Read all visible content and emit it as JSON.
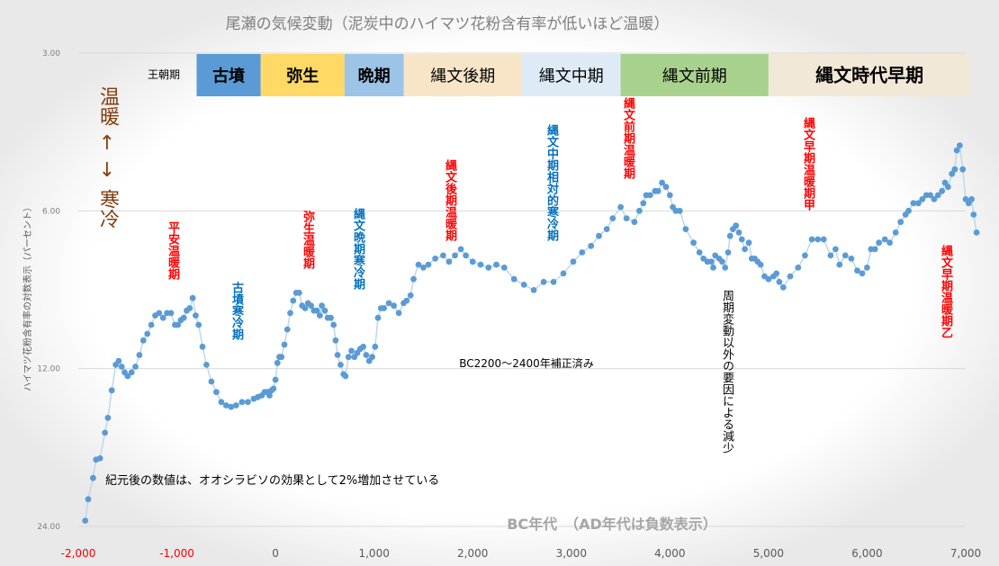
{
  "chart_data": {
    "type": "scatter",
    "title": "尾瀬の気候変動（泥炭中のハイマツ花粉含有率が低いほど温暖）",
    "xlabel": "BC年代　（AD年代は負数表示）",
    "ylabel": "ハイマツ花粉含有率の対数表示（パーセント）",
    "xlim": [
      -2000,
      7000
    ],
    "y_scale": "log",
    "y_reversed": true,
    "ylim": [
      3,
      24
    ],
    "x_ticks": [
      {
        "value": -2000,
        "label": "-2,000"
      },
      {
        "value": -1000,
        "label": "-1,000"
      },
      {
        "value": 0,
        "label": "0"
      },
      {
        "value": 1000,
        "label": "1,000"
      },
      {
        "value": 2000,
        "label": "2,000"
      },
      {
        "value": 3000,
        "label": "3,000"
      },
      {
        "value": 4000,
        "label": "4,000"
      },
      {
        "value": 5000,
        "label": "5,000"
      },
      {
        "value": 6000,
        "label": "6,000"
      },
      {
        "value": 7000,
        "label": "7,000"
      }
    ],
    "y_ticks": [
      {
        "value": 3,
        "label": "3.00"
      },
      {
        "value": 6,
        "label": "6.00"
      },
      {
        "value": 12,
        "label": "12.00"
      },
      {
        "value": 24,
        "label": "24.00"
      }
    ],
    "grid": true,
    "colors": {
      "point": "#5b9bd5",
      "line": "#bdd7ee",
      "grid": "#d9d9d9"
    },
    "points": [
      [
        -1930,
        23.4
      ],
      [
        -1900,
        21.3
      ],
      [
        -1850,
        19.4
      ],
      [
        -1820,
        17.9
      ],
      [
        -1780,
        17.8
      ],
      [
        -1730,
        15.9
      ],
      [
        -1700,
        14.9
      ],
      [
        -1660,
        13.2
      ],
      [
        -1620,
        11.8
      ],
      [
        -1590,
        11.6
      ],
      [
        -1560,
        11.9
      ],
      [
        -1530,
        12.2
      ],
      [
        -1500,
        12.4
      ],
      [
        -1460,
        12.2
      ],
      [
        -1420,
        11.9
      ],
      [
        -1380,
        11.3
      ],
      [
        -1340,
        10.6
      ],
      [
        -1300,
        10.3
      ],
      [
        -1260,
        9.9
      ],
      [
        -1220,
        9.5
      ],
      [
        -1180,
        9.4
      ],
      [
        -1140,
        9.6
      ],
      [
        -1100,
        9.4
      ],
      [
        -1060,
        9.4
      ],
      [
        -1020,
        9.9
      ],
      [
        -990,
        9.9
      ],
      [
        -960,
        9.7
      ],
      [
        -930,
        9.6
      ],
      [
        -900,
        9.3
      ],
      [
        -870,
        9.2
      ],
      [
        -840,
        8.8
      ],
      [
        -810,
        9.5
      ],
      [
        -780,
        9.9
      ],
      [
        -740,
        10.9
      ],
      [
        -700,
        11.8
      ],
      [
        -650,
        12.7
      ],
      [
        -600,
        13.3
      ],
      [
        -550,
        13.9
      ],
      [
        -500,
        14.1
      ],
      [
        -450,
        14.2
      ],
      [
        -400,
        14.1
      ],
      [
        -340,
        13.9
      ],
      [
        -280,
        13.9
      ],
      [
        -220,
        13.7
      ],
      [
        -180,
        13.6
      ],
      [
        -140,
        13.5
      ],
      [
        -110,
        13.3
      ],
      [
        -80,
        13.3
      ],
      [
        -60,
        13.5
      ],
      [
        -40,
        13.2
      ],
      [
        -20,
        13.1
      ],
      [
        0,
        12.6
      ],
      [
        20,
        11.7
      ],
      [
        40,
        11.4
      ],
      [
        60,
        11.4
      ],
      [
        90,
        10.8
      ],
      [
        120,
        10.1
      ],
      [
        150,
        9.4
      ],
      [
        180,
        8.9
      ],
      [
        210,
        8.6
      ],
      [
        240,
        8.6
      ],
      [
        270,
        9.1
      ],
      [
        300,
        9.2
      ],
      [
        330,
        9.0
      ],
      [
        360,
        9.1
      ],
      [
        390,
        9.3
      ],
      [
        420,
        9.3
      ],
      [
        450,
        9.5
      ],
      [
        470,
        9.1
      ],
      [
        500,
        9.3
      ],
      [
        530,
        9.6
      ],
      [
        560,
        9.6
      ],
      [
        590,
        9.9
      ],
      [
        610,
        10.6
      ],
      [
        630,
        11.3
      ],
      [
        660,
        11.8
      ],
      [
        690,
        12.3
      ],
      [
        710,
        12.4
      ],
      [
        740,
        11.4
      ],
      [
        770,
        11.1
      ],
      [
        800,
        11.4
      ],
      [
        830,
        11.2
      ],
      [
        860,
        11.0
      ],
      [
        890,
        10.9
      ],
      [
        920,
        11.3
      ],
      [
        950,
        11.6
      ],
      [
        980,
        11.4
      ],
      [
        1010,
        10.9
      ],
      [
        1040,
        9.6
      ],
      [
        1070,
        9.2
      ],
      [
        1100,
        9.2
      ],
      [
        1150,
        9.0
      ],
      [
        1200,
        9.1
      ],
      [
        1250,
        9.4
      ],
      [
        1300,
        9.0
      ],
      [
        1330,
        8.9
      ],
      [
        1370,
        8.7
      ],
      [
        1400,
        8.1
      ],
      [
        1450,
        7.6
      ],
      [
        1500,
        7.7
      ],
      [
        1550,
        7.6
      ],
      [
        1620,
        7.4
      ],
      [
        1700,
        7.3
      ],
      [
        1760,
        7.5
      ],
      [
        1820,
        7.3
      ],
      [
        1880,
        7.1
      ],
      [
        1930,
        7.3
      ],
      [
        2000,
        7.5
      ],
      [
        2080,
        7.6
      ],
      [
        2160,
        7.7
      ],
      [
        2240,
        7.6
      ],
      [
        2320,
        7.7
      ],
      [
        2420,
        8.1
      ],
      [
        2520,
        8.3
      ],
      [
        2620,
        8.5
      ],
      [
        2720,
        8.2
      ],
      [
        2820,
        8.2
      ],
      [
        2920,
        7.9
      ],
      [
        3020,
        7.5
      ],
      [
        3110,
        7.2
      ],
      [
        3200,
        7.0
      ],
      [
        3280,
        6.7
      ],
      [
        3360,
        6.5
      ],
      [
        3420,
        6.2
      ],
      [
        3500,
        5.9
      ],
      [
        3560,
        6.2
      ],
      [
        3640,
        6.3
      ],
      [
        3690,
        6.0
      ],
      [
        3730,
        5.8
      ],
      [
        3760,
        5.6
      ],
      [
        3800,
        5.6
      ],
      [
        3850,
        5.5
      ],
      [
        3880,
        5.5
      ],
      [
        3920,
        5.3
      ],
      [
        3960,
        5.4
      ],
      [
        4000,
        5.6
      ],
      [
        4030,
        5.9
      ],
      [
        4060,
        6.0
      ],
      [
        4100,
        6.0
      ],
      [
        4160,
        6.5
      ],
      [
        4240,
        6.9
      ],
      [
        4300,
        7.2
      ],
      [
        4340,
        7.4
      ],
      [
        4380,
        7.5
      ],
      [
        4420,
        7.5
      ],
      [
        4440,
        7.7
      ],
      [
        4460,
        7.3
      ],
      [
        4500,
        7.4
      ],
      [
        4530,
        7.5
      ],
      [
        4560,
        7.7
      ],
      [
        4590,
        7.2
      ],
      [
        4610,
        6.7
      ],
      [
        4640,
        6.5
      ],
      [
        4670,
        6.4
      ],
      [
        4700,
        6.6
      ],
      [
        4730,
        6.8
      ],
      [
        4760,
        7.1
      ],
      [
        4800,
        6.9
      ],
      [
        4830,
        7.4
      ],
      [
        4860,
        7.4
      ],
      [
        4890,
        7.5
      ],
      [
        4920,
        7.6
      ],
      [
        4960,
        8.0
      ],
      [
        5000,
        8.1
      ],
      [
        5050,
        8.0
      ],
      [
        5080,
        7.9
      ],
      [
        5110,
        8.2
      ],
      [
        5150,
        8.4
      ],
      [
        5220,
        8.0
      ],
      [
        5300,
        7.7
      ],
      [
        5370,
        7.3
      ],
      [
        5440,
        6.8
      ],
      [
        5500,
        6.8
      ],
      [
        5560,
        6.8
      ],
      [
        5630,
        7.3
      ],
      [
        5680,
        7.1
      ],
      [
        5720,
        7.6
      ],
      [
        5780,
        7.3
      ],
      [
        5840,
        7.4
      ],
      [
        5900,
        7.8
      ],
      [
        5950,
        7.9
      ],
      [
        6000,
        7.7
      ],
      [
        6040,
        7.1
      ],
      [
        6080,
        7.1
      ],
      [
        6120,
        6.9
      ],
      [
        6180,
        6.8
      ],
      [
        6230,
        6.9
      ],
      [
        6290,
        6.6
      ],
      [
        6340,
        6.3
      ],
      [
        6390,
        6.1
      ],
      [
        6420,
        6.0
      ],
      [
        6470,
        5.8
      ],
      [
        6520,
        5.8
      ],
      [
        6560,
        5.7
      ],
      [
        6600,
        5.6
      ],
      [
        6640,
        5.6
      ],
      [
        6680,
        5.7
      ],
      [
        6720,
        5.6
      ],
      [
        6760,
        5.5
      ],
      [
        6790,
        5.3
      ],
      [
        6820,
        5.4
      ],
      [
        6860,
        5.1
      ],
      [
        6890,
        5.0
      ],
      [
        6910,
        4.6
      ],
      [
        6940,
        4.5
      ],
      [
        6970,
        5.0
      ],
      [
        7000,
        5.7
      ],
      [
        7030,
        5.8
      ],
      [
        7060,
        5.7
      ],
      [
        7080,
        6.1
      ],
      [
        7110,
        6.6
      ]
    ]
  },
  "periods_label": "王朝期",
  "periods": [
    {
      "label": "古墳",
      "x0": -800,
      "x1": -150,
      "color": "#5b9bd5",
      "bold": true
    },
    {
      "label": "弥生",
      "x0": -150,
      "x1": 700,
      "color": "#ffd966",
      "bold": true
    },
    {
      "label": "晩期",
      "x0": 700,
      "x1": 1300,
      "color": "#9dc3e6",
      "bold": true
    },
    {
      "label": "縄文後期",
      "x0": 1300,
      "x1": 2500,
      "color": "#f8e5c8",
      "bold": false
    },
    {
      "label": "縄文中期",
      "x0": 2500,
      "x1": 3500,
      "color": "#deebf7",
      "bold": false
    },
    {
      "label": "縄文前期",
      "x0": 3500,
      "x1": 5000,
      "color": "#a9d18e",
      "bold": false
    },
    {
      "label": "縄文時代早期",
      "x0": 5000,
      "x1": 7050,
      "color": "#f2e8d8",
      "bold": true
    }
  ],
  "left_legend": {
    "warm": "温暖",
    "arrow_up": "↑",
    "arrow_down": "↓",
    "cold": "寒冷",
    "color": "#843c0c"
  },
  "annotations": [
    {
      "text": "平安温暖期",
      "color": "#ff0000",
      "vertical": true
    },
    {
      "text": "古墳寒冷期",
      "color": "#0070c0",
      "vertical": true
    },
    {
      "text": "弥生温暖期",
      "color": "#ff0000",
      "vertical": true
    },
    {
      "text": "縄文晩期寒冷期",
      "color": "#0070c0",
      "vertical": true
    },
    {
      "text": "縄文後期温暖期",
      "color": "#ff0000",
      "vertical": true
    },
    {
      "text": "縄文中期相対的寒冷期",
      "color": "#0070c0",
      "vertical": true
    },
    {
      "text": "縄文前期温暖期",
      "color": "#ff0000",
      "vertical": true
    },
    {
      "text": "周期変動以外の要因による減少",
      "color": "#000000",
      "vertical": true
    },
    {
      "text": "縄文早期温暖期甲",
      "color": "#ff0000",
      "vertical": true
    },
    {
      "text": "縄文早期温暖期乙",
      "color": "#ff0000",
      "vertical": true
    },
    {
      "text": "BC2200〜2400年補正済み",
      "color": "#000000",
      "vertical": false
    },
    {
      "text": "紀元後の数値は、オオシラビソの効果として2%増加させている",
      "color": "#000000",
      "vertical": false
    }
  ]
}
